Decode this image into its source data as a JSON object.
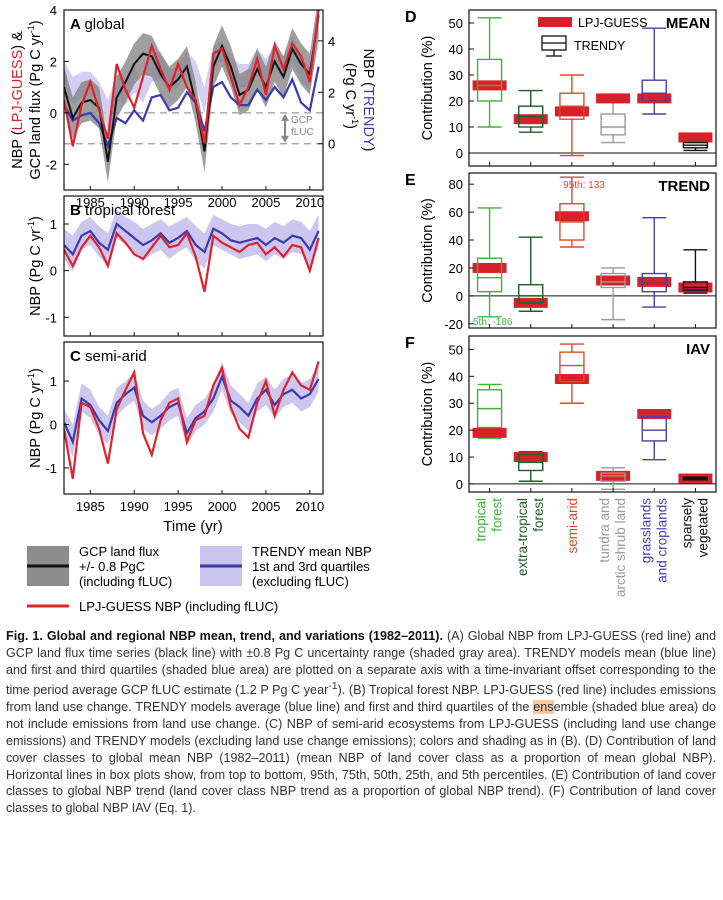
{
  "panels": {
    "A": {
      "letter": "A",
      "name": "global"
    },
    "B": {
      "letter": "B",
      "name": "tropical forest"
    },
    "C": {
      "letter": "C",
      "name": "semi-arid"
    },
    "D": {
      "letter": "D",
      "name": "MEAN"
    },
    "E": {
      "letter": "E",
      "name": "TREND"
    },
    "F": {
      "letter": "F",
      "name": "IAV"
    }
  },
  "left_axes": {
    "A_ylabel_parts": [
      "NBP (",
      "LPJ-GUESS",
      ") &"
    ],
    "A_ylabel_line2": "GCP land flux (Pg C yr",
    "A_right_label_parts": [
      "NBP (",
      "TRENDY",
      ")"
    ],
    "A_right_label_line2": "(Pg C yr",
    "B_ylabel": "NBP (Pg C yr",
    "C_ylabel": "NBP (Pg C yr",
    "exp": "-1",
    "close_paren": ")",
    "xlabel": "Time (yr)",
    "gcp_annot": [
      "GCP",
      "fLUC"
    ]
  },
  "right_axes": {
    "ylabel": "Contribution (%)",
    "categories": [
      "tropical forest",
      "extra-tropical forest",
      "semi-arid",
      "tundra and arctic shrub land",
      "grasslands and croplands",
      "sparsely vegetated"
    ],
    "category_lines": [
      [
        "tropical",
        "forest"
      ],
      [
        "extra-tropical",
        "forest"
      ],
      [
        "semi-arid"
      ],
      [
        "tundra and",
        "arctic shrub land"
      ],
      [
        "grasslands",
        "and croplands"
      ],
      [
        "sparsely",
        "vegetated"
      ]
    ],
    "category_colors": [
      "#3cb43c",
      "#1e5e2a",
      "#e0492a",
      "#9a9a9a",
      "#4a3fa8",
      "#111111"
    ],
    "legend": [
      "LPJ-GUESS",
      "TRENDY"
    ],
    "E_annot_top": "95th: 133",
    "E_annot_bottom": "5th: -186"
  },
  "legend": {
    "gcp": [
      "GCP land flux",
      "+/- 0.8 PgC",
      "(including fLUC)"
    ],
    "trendy": [
      "TRENDY mean NBP",
      "1st and 3rd quartiles",
      "(excluding fLUC)"
    ],
    "lpj": "LPJ-GUESS NBP (including fLUC)"
  },
  "caption": {
    "fig_label": "Fig. 1. Global and regional NBP mean, trend, and variations (1982–2011).",
    "text_1": " (A) Global NBP from LPJ-GUESS (red line) and GCP land flux time series (black line) with ±0.8 Pg C uncertainty range (shaded gray area). TRENDY models mean (blue line) and first and third quartiles (shaded blue area) are plotted on a separate axis with a time-invariant offset corresponding to the time period average GCP fLUC estimate (1.2 P Pg C year",
    "text_sup": "-1",
    "text_2": "). (B) Tropical forest NBP. LPJ-GUESS (red line) includes emissions from land use change. TRENDY models average (blue line) and first and third quartiles of the ",
    "text_hl": "ens",
    "text_3": "emble (shaded blue area) do not include emissions from land use change. (C) NBP of semi-arid ecosystems from LPJ-GUESS (including land use change emissions) and TRENDY models (excluding land use change emissions); colors and shading as in (B). (D) Contribution of land cover classes to global mean NBP (1982–2011) (mean NBP of land cover class as a proportion of mean global NBP). Horizontal lines in box plots show, from top to bottom, 95th, 75th, 50th, 25th, and 5th percentiles. (E) Contribution of land cover classes to global NBP trend (land cover class NBP trend as a proportion of global NBP trend). (F) Contribution of land cover classes to global NBP IAV (Eq. 1)."
  },
  "chart_data": [
    {
      "type": "line",
      "panel": "A",
      "title": "global",
      "xlabel": "Time (yr)",
      "ylabel": "NBP (LPJ-GUESS) & GCP land flux (Pg C yr-1)",
      "right_ylabel": "NBP (TRENDY) (Pg C yr-1)",
      "xlim": [
        1982,
        2011.5
      ],
      "ylim": [
        -3,
        4
      ],
      "xticks": [
        1985,
        1990,
        1995,
        2000,
        2005,
        2010
      ],
      "yticks": [
        -2,
        0,
        2,
        4
      ],
      "right_yticks": [
        0,
        2,
        4
      ],
      "x": [
        1982,
        1983,
        1984,
        1985,
        1986,
        1987,
        1988,
        1989,
        1990,
        1991,
        1992,
        1993,
        1994,
        1995,
        1996,
        1997,
        1998,
        1999,
        2000,
        2001,
        2002,
        2003,
        2004,
        2005,
        2006,
        2007,
        2008,
        2009,
        2010,
        2011
      ],
      "series": [
        {
          "name": "GCP land flux",
          "band": 0.8,
          "values": [
            1.0,
            -0.2,
            0.4,
            0.5,
            0.2,
            -1.9,
            0.6,
            1.2,
            1.9,
            2.3,
            2.2,
            1.5,
            1.0,
            1.3,
            1.8,
            0.4,
            -1.5,
            1.8,
            2.6,
            1.8,
            0.7,
            0.9,
            1.7,
            1.0,
            2.0,
            1.4,
            2.5,
            1.9,
            1.5,
            3.8
          ]
        },
        {
          "name": "TRENDY mean NBP",
          "q_low": [
            1.0,
            0.3,
            0.6,
            0.7,
            0.3,
            -0.6,
            0.5,
            0.3,
            0.8,
            0.4,
            1.2,
            1.3,
            0.8,
            1.0,
            1.5,
            1.1,
            0.0,
            1.7,
            2.0,
            1.4,
            1.0,
            1.0,
            1.7,
            1.2,
            1.7,
            1.3,
            2.0,
            1.2,
            0.9,
            2.6
          ],
          "q_high": [
            2.0,
            1.4,
            1.6,
            1.6,
            1.2,
            0.5,
            1.5,
            1.3,
            1.8,
            1.3,
            2.3,
            2.4,
            1.7,
            1.8,
            2.4,
            2.0,
            1.0,
            2.6,
            2.8,
            2.2,
            1.9,
            1.9,
            2.5,
            2.1,
            2.6,
            2.2,
            3.0,
            2.1,
            1.8,
            3.5
          ],
          "values": [
            1.5,
            0.9,
            1.1,
            1.2,
            0.8,
            -0.1,
            1.0,
            0.8,
            1.3,
            0.9,
            1.8,
            1.9,
            1.3,
            1.4,
            2.0,
            1.6,
            0.5,
            2.2,
            2.4,
            1.8,
            1.5,
            1.5,
            2.1,
            1.7,
            2.2,
            1.8,
            2.5,
            1.6,
            1.3,
            3.0
          ]
        },
        {
          "name": "LPJ-GUESS NBP",
          "values": [
            0.5,
            -1.3,
            0.3,
            1.2,
            0.1,
            -1.0,
            1.9,
            0.9,
            0.2,
            1.4,
            2.6,
            1.7,
            0.9,
            1.9,
            1.0,
            0.5,
            -1.2,
            2.3,
            2.5,
            1.4,
            0.3,
            1.0,
            2.1,
            0.7,
            2.6,
            1.7,
            2.7,
            2.2,
            1.2,
            4.0
          ]
        }
      ]
    },
    {
      "type": "line",
      "panel": "B",
      "title": "tropical forest",
      "ylabel": "NBP (Pg C yr-1)",
      "xlim": [
        1982,
        2011.5
      ],
      "ylim": [
        -1.4,
        1.6
      ],
      "yticks": [
        -1,
        0,
        1
      ],
      "x": [
        1982,
        1983,
        1984,
        1985,
        1986,
        1987,
        1988,
        1989,
        1990,
        1991,
        1992,
        1993,
        1994,
        1995,
        1996,
        1997,
        1998,
        1999,
        2000,
        2001,
        2002,
        2003,
        2004,
        2005,
        2006,
        2007,
        2008,
        2009,
        2010,
        2011
      ],
      "series": [
        {
          "name": "TRENDY mean NBP",
          "q_low": [
            0.25,
            0.0,
            0.45,
            0.55,
            0.3,
            0.1,
            0.7,
            0.55,
            0.4,
            0.2,
            0.35,
            0.45,
            0.25,
            0.4,
            0.5,
            0.2,
            0.05,
            0.55,
            0.45,
            0.35,
            0.25,
            0.3,
            0.35,
            0.2,
            0.35,
            0.25,
            0.4,
            0.35,
            0.1,
            0.5
          ],
          "q_high": [
            0.9,
            0.75,
            1.05,
            1.15,
            0.95,
            0.8,
            1.3,
            1.15,
            1.05,
            0.9,
            1.0,
            1.1,
            0.95,
            1.05,
            1.15,
            0.95,
            0.8,
            1.2,
            1.1,
            1.0,
            0.95,
            1.0,
            1.0,
            0.9,
            1.05,
            0.95,
            1.1,
            1.05,
            0.85,
            1.2
          ],
          "values": [
            0.55,
            0.35,
            0.75,
            0.85,
            0.6,
            0.45,
            1.0,
            0.85,
            0.7,
            0.55,
            0.65,
            0.8,
            0.6,
            0.7,
            0.85,
            0.55,
            0.4,
            0.9,
            0.8,
            0.65,
            0.6,
            0.65,
            0.7,
            0.55,
            0.7,
            0.6,
            0.75,
            0.7,
            0.45,
            0.85
          ]
        },
        {
          "name": "LPJ-GUESS NBP",
          "values": [
            0.45,
            0.1,
            0.5,
            0.75,
            0.5,
            0.1,
            0.8,
            0.6,
            0.35,
            0.25,
            0.5,
            0.75,
            0.5,
            0.55,
            0.8,
            0.3,
            -0.45,
            0.75,
            0.6,
            0.5,
            0.4,
            0.55,
            0.6,
            0.35,
            0.5,
            0.3,
            0.55,
            0.5,
            0.0,
            0.7
          ]
        }
      ]
    },
    {
      "type": "line",
      "panel": "C",
      "title": "semi-arid",
      "xlabel": "Time (yr)",
      "ylabel": "NBP (Pg C yr-1)",
      "xlim": [
        1982,
        2011.5
      ],
      "ylim": [
        -1.6,
        1.9
      ],
      "xticks": [
        1985,
        1990,
        1995,
        2000,
        2005,
        2010
      ],
      "yticks": [
        -1,
        0,
        1
      ],
      "x": [
        1982,
        1983,
        1984,
        1985,
        1986,
        1987,
        1988,
        1989,
        1990,
        1991,
        1992,
        1993,
        1994,
        1995,
        1996,
        1997,
        1998,
        1999,
        2000,
        2001,
        2002,
        2003,
        2004,
        2005,
        2006,
        2007,
        2008,
        2009,
        2010,
        2011
      ],
      "series": [
        {
          "name": "TRENDY mean NBP",
          "q_low": [
            -0.3,
            -0.75,
            0.3,
            0.15,
            -0.25,
            -0.45,
            0.2,
            0.4,
            0.55,
            -0.1,
            -0.25,
            -0.1,
            0.1,
            0.2,
            -0.5,
            -0.15,
            0.0,
            0.3,
            0.8,
            0.25,
            0.05,
            -0.15,
            0.3,
            0.45,
            0.15,
            0.4,
            0.5,
            0.3,
            0.4,
            0.75
          ],
          "q_high": [
            0.35,
            0.0,
            0.95,
            0.8,
            0.4,
            0.2,
            0.85,
            1.0,
            1.2,
            0.55,
            0.35,
            0.5,
            0.75,
            0.85,
            0.15,
            0.45,
            0.6,
            0.9,
            1.45,
            0.9,
            0.7,
            0.5,
            0.95,
            1.1,
            0.8,
            1.05,
            1.15,
            0.95,
            1.05,
            1.4
          ],
          "values": [
            0.05,
            -0.4,
            0.6,
            0.45,
            0.1,
            -0.15,
            0.5,
            0.7,
            0.85,
            0.2,
            0.05,
            0.2,
            0.4,
            0.5,
            -0.2,
            0.15,
            0.3,
            0.6,
            1.1,
            0.55,
            0.4,
            0.2,
            0.6,
            0.8,
            0.45,
            0.7,
            0.8,
            0.6,
            0.7,
            1.05
          ]
        },
        {
          "name": "LPJ-GUESS NBP",
          "values": [
            -0.1,
            -1.25,
            0.5,
            0.4,
            -0.1,
            -0.9,
            0.35,
            0.8,
            1.2,
            -0.2,
            -0.7,
            0.1,
            0.5,
            0.6,
            -0.4,
            0.1,
            0.2,
            0.9,
            1.3,
            0.4,
            -0.1,
            -0.3,
            0.5,
            1.0,
            0.2,
            0.8,
            1.2,
            0.9,
            0.8,
            1.45
          ]
        }
      ]
    },
    {
      "type": "boxplot",
      "panel": "D",
      "title": "MEAN",
      "ylabel": "Contribution (%)",
      "ylim": [
        -5,
        55
      ],
      "yticks": [
        0,
        10,
        20,
        30,
        40,
        50
      ],
      "categories": [
        "tropical forest",
        "extra-tropical forest",
        "semi-arid",
        "tundra and arctic shrub land",
        "grasslands and croplands",
        "sparsely vegetated"
      ],
      "trendy_boxes": [
        [
          10,
          20,
          26,
          36,
          52
        ],
        [
          8,
          10,
          14,
          18,
          24
        ],
        [
          -1,
          13,
          18,
          23,
          30
        ],
        [
          4,
          7,
          10,
          15,
          20
        ],
        [
          15,
          20,
          23,
          28,
          48
        ],
        [
          1,
          2,
          3,
          4,
          6
        ]
      ],
      "lpj_values": [
        26,
        13,
        16,
        21,
        21,
        6
      ]
    },
    {
      "type": "boxplot",
      "panel": "E",
      "title": "TREND",
      "ylabel": "Contribution (%)",
      "ylim": [
        -23,
        88
      ],
      "yticks": [
        -20,
        0,
        20,
        40,
        60,
        80
      ],
      "categories": [
        "tropical forest",
        "extra-tropical forest",
        "semi-arid",
        "tundra and arctic shrub land",
        "grasslands and croplands",
        "sparsely vegetated"
      ],
      "trendy_boxes": [
        [
          -15,
          3,
          13,
          27,
          63
        ],
        [
          -11,
          -5,
          0,
          8,
          42
        ],
        [
          35,
          40,
          53,
          66,
          85
        ],
        [
          -17,
          6,
          10,
          16,
          20
        ],
        [
          -8,
          3,
          9,
          16,
          56
        ],
        [
          2,
          4,
          6,
          10,
          33
        ]
      ],
      "lpj_values": [
        20,
        -5,
        57,
        11,
        10,
        6
      ],
      "annotations": [
        "95th: 133",
        "5th: -186"
      ]
    },
    {
      "type": "boxplot",
      "panel": "F",
      "title": "IAV",
      "ylabel": "Contribution (%)",
      "ylim": [
        -3,
        55
      ],
      "yticks": [
        0,
        10,
        20,
        30,
        40,
        50
      ],
      "categories": [
        "tropical forest",
        "extra-tropical forest",
        "semi-arid",
        "tundra and arctic shrub land",
        "grasslands and croplands",
        "sparsely vegetated"
      ],
      "trendy_boxes": [
        [
          17,
          21,
          28,
          35,
          37
        ],
        [
          1,
          5,
          8,
          11,
          12
        ],
        [
          30,
          38,
          44,
          49,
          52
        ],
        [
          -2,
          1,
          3,
          4,
          6
        ],
        [
          9,
          16,
          20,
          25,
          27
        ],
        [
          1,
          1.5,
          2,
          2.5,
          3
        ]
      ],
      "lpj_values": [
        19,
        10,
        39,
        3,
        26,
        2
      ]
    }
  ]
}
